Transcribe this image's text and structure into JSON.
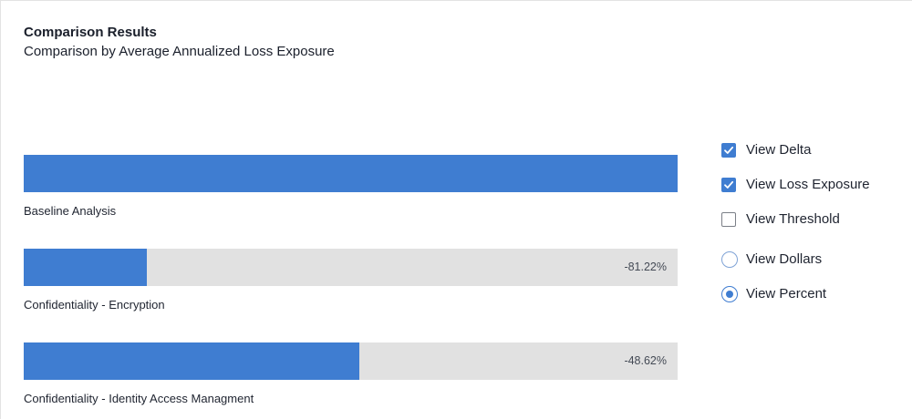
{
  "header": {
    "title": "Comparison Results",
    "subtitle": "Comparison by Average Annualized Loss Exposure"
  },
  "bars": [
    {
      "label": "Baseline Analysis",
      "value_text": "",
      "fill_fraction": 1.0
    },
    {
      "label": "Confidentiality - Encryption",
      "value_text": "-81.22%",
      "fill_fraction": 0.1878
    },
    {
      "label": "Confidentiality - Identity Access Managment",
      "value_text": "-48.62%",
      "fill_fraction": 0.5138
    }
  ],
  "options": {
    "view_delta": {
      "label": "View Delta",
      "checked": true
    },
    "view_loss_exposure": {
      "label": "View Loss Exposure",
      "checked": true
    },
    "view_threshold": {
      "label": "View Threshold",
      "checked": false
    },
    "view_dollars": {
      "label": "View Dollars",
      "selected": false
    },
    "view_percent": {
      "label": "View Percent",
      "selected": true
    }
  },
  "colors": {
    "bar_fill": "#3f7dd1",
    "bar_track": "#e1e1e1",
    "accent": "#3f7dd1"
  }
}
